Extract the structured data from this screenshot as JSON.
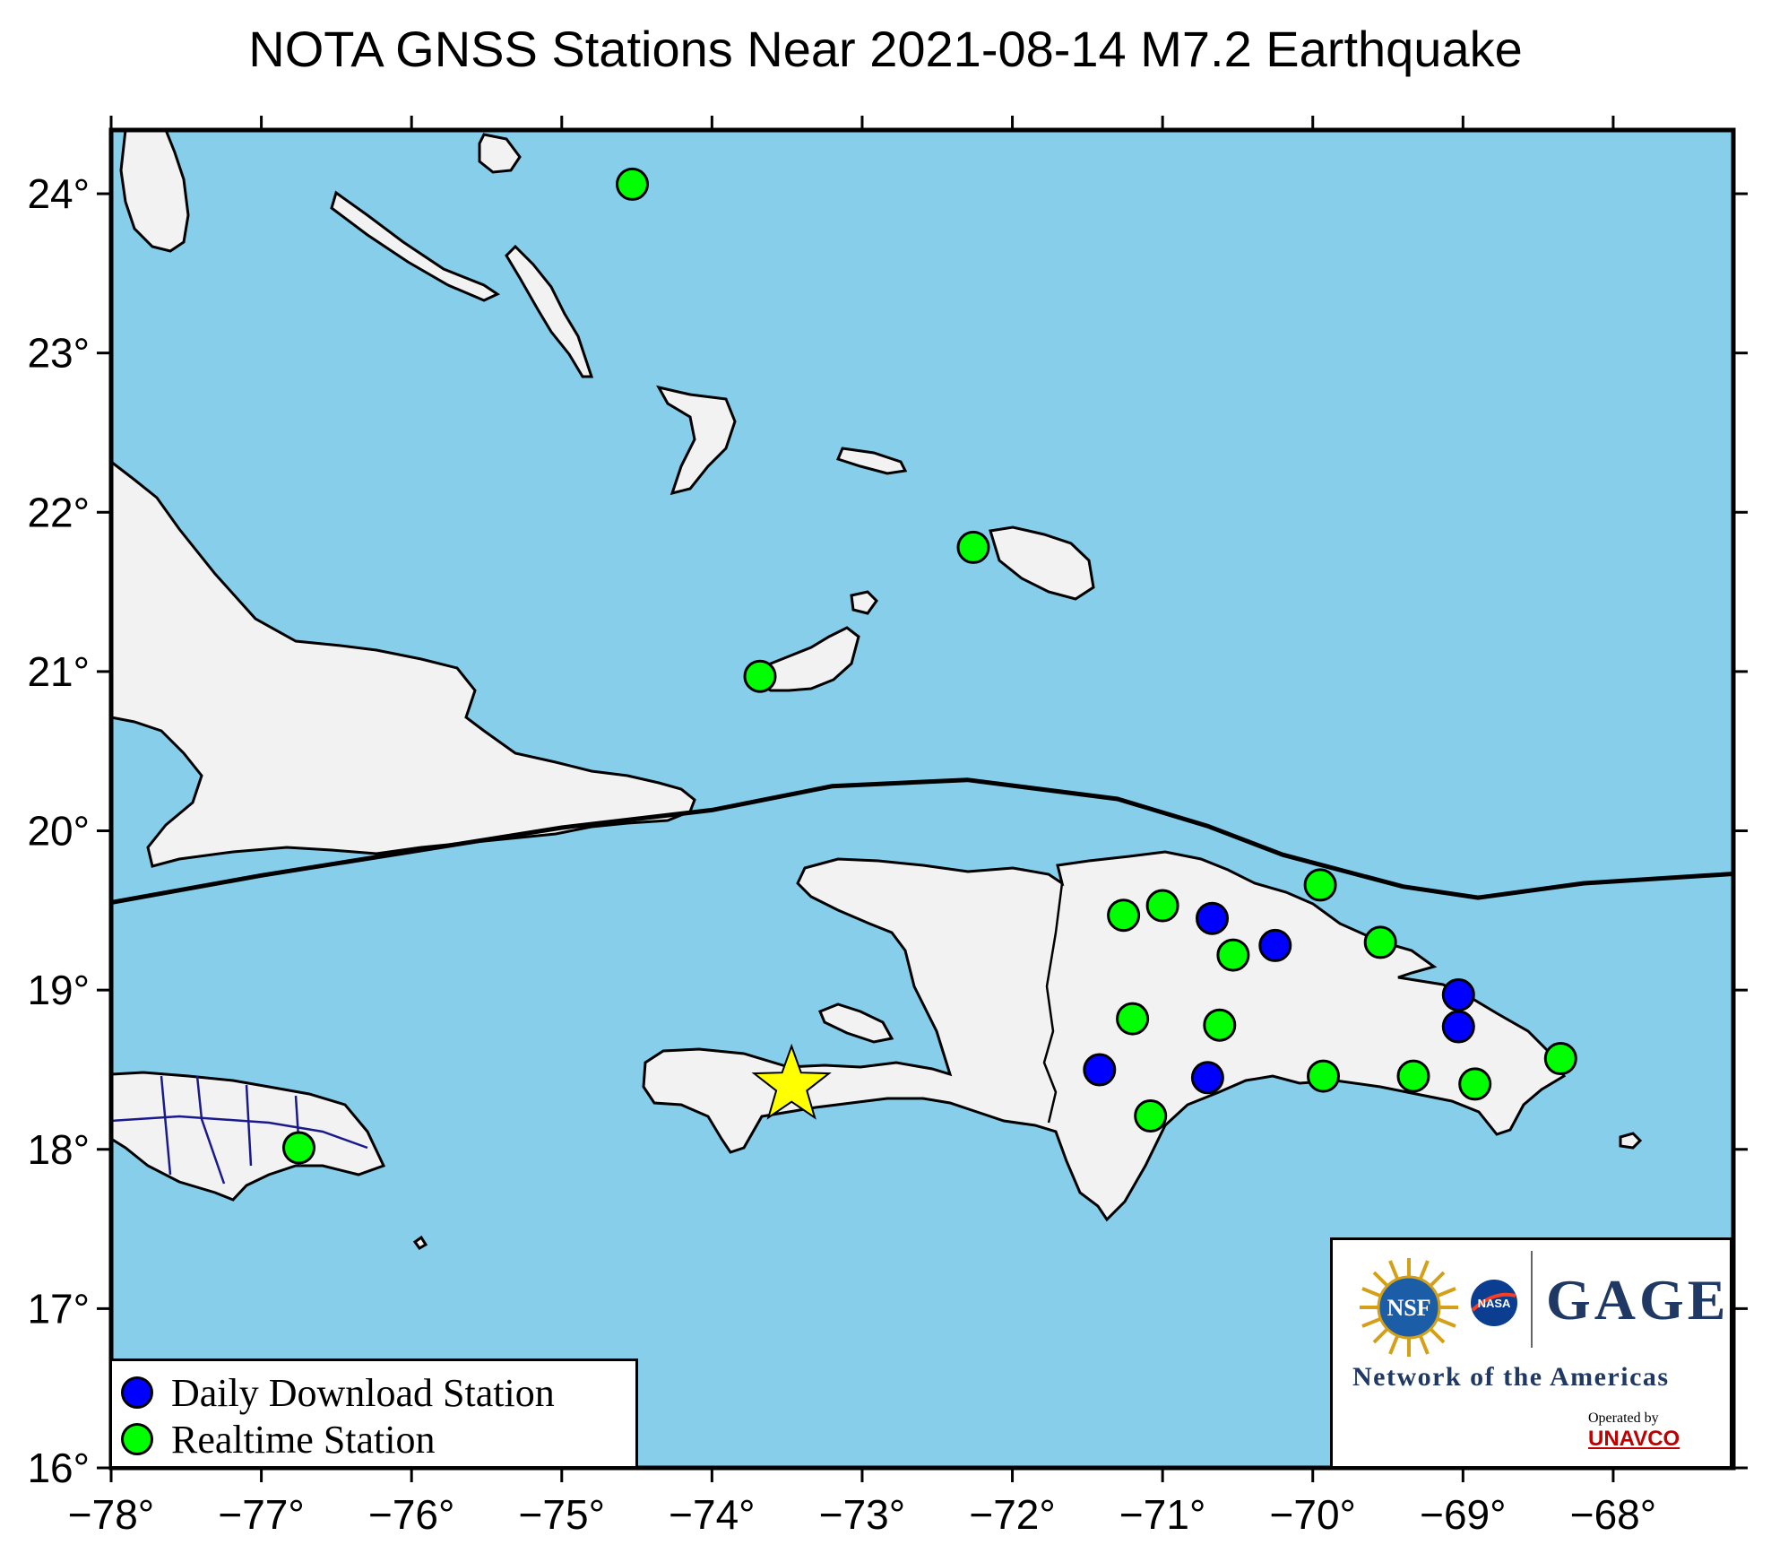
{
  "title": "NOTA GNSS Stations Near 2021-08-14 M7.2 Earthquake",
  "map": {
    "lon_range": [
      -78.0,
      -67.2
    ],
    "lat_range": [
      16.0,
      24.4
    ],
    "x_ticks": [
      {
        "value": -78,
        "label": "−78°"
      },
      {
        "value": -77,
        "label": "−77°"
      },
      {
        "value": -76,
        "label": "−76°"
      },
      {
        "value": -75,
        "label": "−75°"
      },
      {
        "value": -74,
        "label": "−74°"
      },
      {
        "value": -73,
        "label": "−73°"
      },
      {
        "value": -72,
        "label": "−72°"
      },
      {
        "value": -71,
        "label": "−71°"
      },
      {
        "value": -70,
        "label": "−70°"
      },
      {
        "value": -69,
        "label": "−69°"
      },
      {
        "value": -68,
        "label": "−68°"
      }
    ],
    "y_ticks": [
      {
        "value": 16,
        "label": "16°"
      },
      {
        "value": 17,
        "label": "17°"
      },
      {
        "value": 18,
        "label": "18°"
      },
      {
        "value": 19,
        "label": "19°"
      },
      {
        "value": 20,
        "label": "20°"
      },
      {
        "value": 21,
        "label": "21°"
      },
      {
        "value": 22,
        "label": "22°"
      },
      {
        "value": 23,
        "label": "23°"
      },
      {
        "value": 24,
        "label": "24°"
      }
    ],
    "colors": {
      "ocean": "#87ceeb",
      "land": "#f2f2f2",
      "daily": "#0000ff",
      "realtime": "#00ff00",
      "epicenter": "#ffff00",
      "borders": "#1a1a8c"
    },
    "plate_boundary": [
      [
        -78.0,
        19.55
      ],
      [
        -77.0,
        19.72
      ],
      [
        -76.0,
        19.87
      ],
      [
        -75.0,
        20.02
      ],
      [
        -74.0,
        20.13
      ],
      [
        -73.2,
        20.28
      ],
      [
        -72.3,
        20.32
      ],
      [
        -71.3,
        20.2
      ],
      [
        -70.7,
        20.03
      ],
      [
        -70.2,
        19.85
      ],
      [
        -69.4,
        19.65
      ],
      [
        -68.9,
        19.58
      ],
      [
        -68.2,
        19.67
      ],
      [
        -67.2,
        19.73
      ]
    ],
    "epicenter": {
      "lon": -73.47,
      "lat": 18.4,
      "marker": "star-icon"
    },
    "stations": {
      "daily": [
        [
          -71.42,
          18.5
        ],
        [
          -70.67,
          19.45
        ],
        [
          -70.25,
          19.28
        ],
        [
          -70.7,
          18.45
        ],
        [
          -69.03,
          18.97
        ],
        [
          -69.03,
          18.77
        ]
      ],
      "realtime": [
        [
          -74.53,
          24.06
        ],
        [
          -72.26,
          21.78
        ],
        [
          -73.68,
          20.97
        ],
        [
          -76.75,
          18.01
        ],
        [
          -71.26,
          19.47
        ],
        [
          -71.0,
          19.53
        ],
        [
          -70.53,
          19.22
        ],
        [
          -69.95,
          19.66
        ],
        [
          -69.55,
          19.3
        ],
        [
          -71.2,
          18.82
        ],
        [
          -70.62,
          18.78
        ],
        [
          -71.08,
          18.21
        ],
        [
          -69.93,
          18.46
        ],
        [
          -69.33,
          18.46
        ],
        [
          -68.92,
          18.41
        ],
        [
          -68.35,
          18.57
        ]
      ]
    }
  },
  "legend": {
    "daily_label": "Daily Download Station",
    "realtime_label": "Realtime Station"
  },
  "logos": {
    "nsf": "NSF",
    "nasa": "NASA",
    "gage": "GAGE",
    "network": "Network of the Americas",
    "operated_by": "Operated by",
    "unavco": "UNAVCO"
  }
}
